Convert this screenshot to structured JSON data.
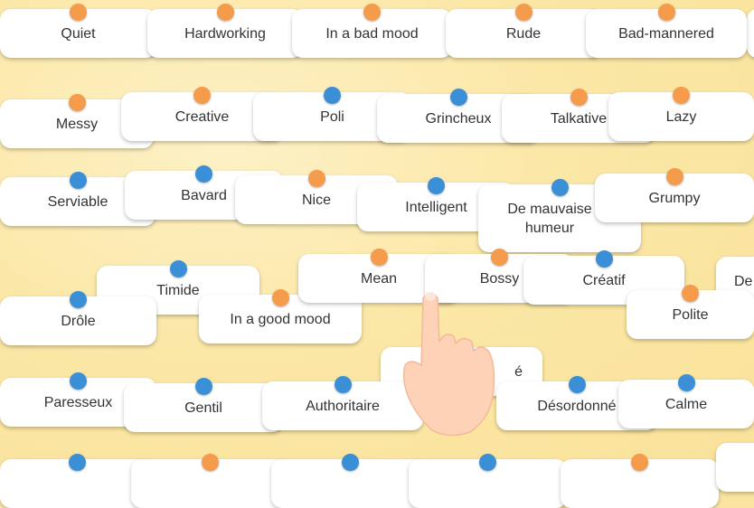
{
  "cards": [
    "Quiet",
    "Hardworking",
    "In a bad mood",
    "Rude",
    "Bad-mannered",
    "Messy",
    "Creative",
    "Poli",
    "Grincheux",
    "Talkative",
    "Lazy",
    "Serviable",
    "Bavard",
    "Nice",
    "Intelligent",
    "De mauvaise humeur",
    "Grumpy",
    "Timide",
    "Drôle",
    "In a good mood",
    "Mean",
    "Bossy",
    "Créatif",
    "De",
    "Polite",
    "é",
    "Paresseux",
    "Gentil",
    "Authoritaire",
    "Désordonné",
    "Calme"
  ]
}
